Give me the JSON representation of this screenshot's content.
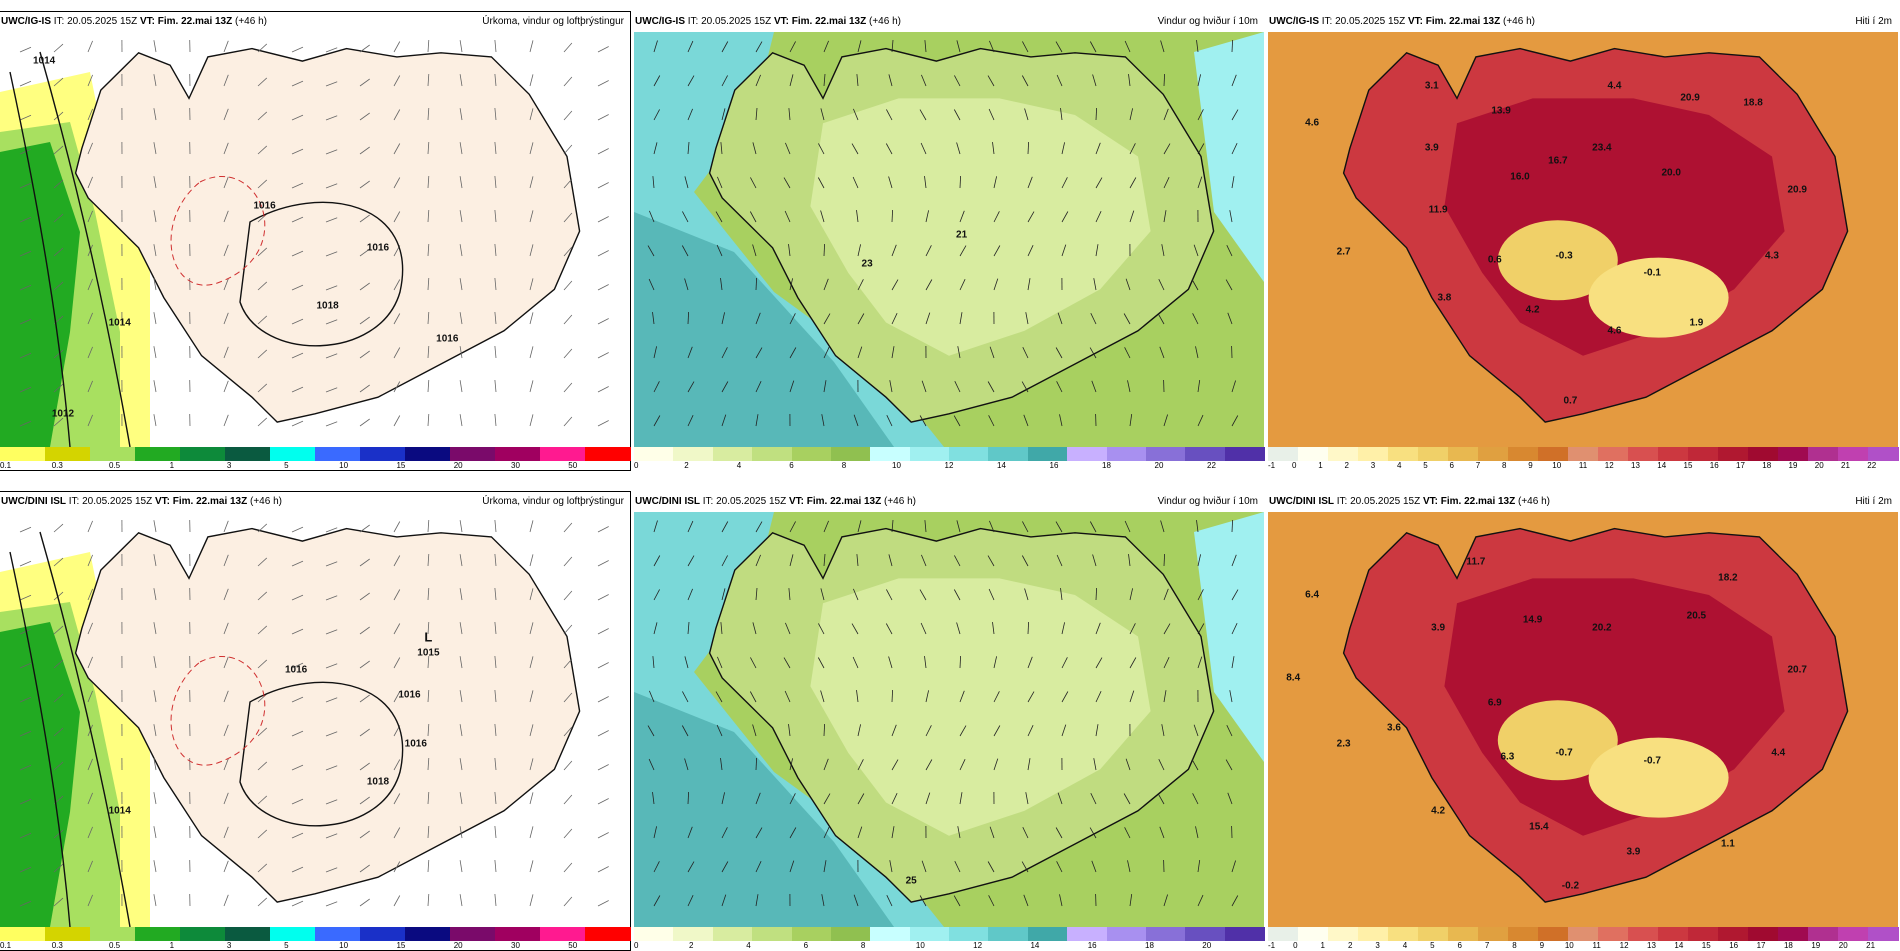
{
  "panels": [
    {
      "id": "igis-precip",
      "model": "UWC/IG-IS",
      "it_label": "IT:",
      "it_value": "20.05.2025 15Z",
      "vt_label": "VT:",
      "vt_value": "Fim. 22.mai 13Z",
      "lead": "(+46 h)",
      "title": "Úrkoma, vindur og loftþrýstingur",
      "kind": "precip",
      "legend": {
        "colors": [
          "#ffff60",
          "#d4d400",
          "#a8e060",
          "#22aa22",
          "#0d8a3a",
          "#0a5a40",
          "#00ffee",
          "#3a6aff",
          "#1a30c8",
          "#0a0a80",
          "#7a0a6a",
          "#a00060",
          "#ff1a90",
          "#ff0000"
        ],
        "ticks": [
          "0.1",
          "0.3",
          "0.5",
          "1",
          "3",
          "5",
          "10",
          "15",
          "20",
          "30",
          "50"
        ]
      },
      "values": [
        {
          "text": "1014"
        },
        {
          "text": "1016"
        },
        {
          "text": "1016"
        },
        {
          "text": "1018"
        },
        {
          "text": "1014"
        },
        {
          "text": "1012"
        },
        {
          "text": "1016"
        }
      ]
    },
    {
      "id": "igis-wind",
      "model": "UWC/IG-IS",
      "it_label": "IT:",
      "it_value": "20.05.2025 15Z",
      "vt_label": "VT:",
      "vt_value": "Fim. 22.mai 13Z",
      "lead": "(+46 h)",
      "title": "Vindur og hviður í 10m",
      "kind": "wind",
      "legend": {
        "colors": [
          "#ffffe8",
          "#f0f8c8",
          "#d8eca0",
          "#c0e080",
          "#a8d060",
          "#90c050",
          "#c8ffff",
          "#a0f0f0",
          "#80e0e0",
          "#60c8c8",
          "#40a8a8",
          "#c8b0ff",
          "#a890f0",
          "#8870d8",
          "#6850c0",
          "#5030a8"
        ],
        "ticks": [
          "0",
          "2",
          "4",
          "6",
          "8",
          "10",
          "12",
          "14",
          "16",
          "18",
          "20",
          "22"
        ]
      },
      "values": [
        {
          "text": "23"
        },
        {
          "text": "21"
        }
      ]
    },
    {
      "id": "igis-temp",
      "model": "UWC/IG-IS",
      "it_label": "IT:",
      "it_value": "20.05.2025 15Z",
      "vt_label": "VT:",
      "vt_value": "Fim. 22.mai 13Z",
      "lead": "(+46 h)",
      "title": "Hiti í 2m",
      "kind": "temp",
      "legend": {
        "colors": [
          "#e8f0e8",
          "#fffff0",
          "#fff8c8",
          "#fff0a8",
          "#f8e080",
          "#f0d068",
          "#e8b850",
          "#e0a040",
          "#d88830",
          "#d07028",
          "#e09070",
          "#e07060",
          "#d85050",
          "#cc3840",
          "#c02838",
          "#b01830",
          "#a00a30",
          "#a00a50",
          "#b03090",
          "#c040b0",
          "#b050c8"
        ],
        "ticks": [
          "-1",
          "0",
          "1",
          "2",
          "3",
          "4",
          "5",
          "6",
          "7",
          "8",
          "9",
          "10",
          "11",
          "12",
          "13",
          "14",
          "15",
          "16",
          "17",
          "18",
          "19",
          "20",
          "21",
          "22"
        ]
      },
      "values": [
        {
          "text": "3.1"
        },
        {
          "text": "4.4"
        },
        {
          "text": "20.9"
        },
        {
          "text": "18.8"
        },
        {
          "text": "4.6"
        },
        {
          "text": "13.9"
        },
        {
          "text": "3.9"
        },
        {
          "text": "16.7"
        },
        {
          "text": "23.4"
        },
        {
          "text": "16.0"
        },
        {
          "text": "20.0"
        },
        {
          "text": "20.9"
        },
        {
          "text": "11.9"
        },
        {
          "text": "2.7"
        },
        {
          "text": "0.6"
        },
        {
          "text": "-0.3"
        },
        {
          "text": "-0.1"
        },
        {
          "text": "4.3"
        },
        {
          "text": "3.8"
        },
        {
          "text": "4.2"
        },
        {
          "text": "1.9"
        },
        {
          "text": "4.6"
        },
        {
          "text": "0.7"
        }
      ]
    },
    {
      "id": "dini-precip",
      "model": "UWC/DINI ISL",
      "it_label": "IT:",
      "it_value": "20.05.2025 15Z",
      "vt_label": "VT:",
      "vt_value": "Fim. 22.mai 13Z",
      "lead": "(+46 h)",
      "title": "Úrkoma, vindur og loftþrýstingur",
      "kind": "precip",
      "legend": {
        "colors": [
          "#ffff60",
          "#d4d400",
          "#a8e060",
          "#22aa22",
          "#0d8a3a",
          "#0a5a40",
          "#00ffee",
          "#3a6aff",
          "#1a30c8",
          "#0a0a80",
          "#7a0a6a",
          "#a00060",
          "#ff1a90",
          "#ff0000"
        ],
        "ticks": [
          "0.1",
          "0.3",
          "0.5",
          "1",
          "3",
          "5",
          "10",
          "15",
          "20",
          "30",
          "50"
        ]
      },
      "values": [
        {
          "text": "L"
        },
        {
          "text": "1015"
        },
        {
          "text": "1016"
        },
        {
          "text": "1016"
        },
        {
          "text": "1014"
        },
        {
          "text": "1018"
        },
        {
          "text": "1016"
        }
      ]
    },
    {
      "id": "dini-wind",
      "model": "UWC/DINI ISL",
      "it_label": "IT:",
      "it_value": "20.05.2025 15Z",
      "vt_label": "VT:",
      "vt_value": "Fim. 22.mai 13Z",
      "lead": "(+46 h)",
      "title": "Vindur og hviður í 10m",
      "kind": "wind",
      "legend": {
        "colors": [
          "#ffffe8",
          "#f0f8c8",
          "#d8eca0",
          "#c0e080",
          "#a8d060",
          "#90c050",
          "#c8ffff",
          "#a0f0f0",
          "#80e0e0",
          "#60c8c8",
          "#40a8a8",
          "#c8b0ff",
          "#a890f0",
          "#8870d8",
          "#6850c0",
          "#5030a8"
        ],
        "ticks": [
          "0",
          "2",
          "4",
          "6",
          "8",
          "10",
          "12",
          "14",
          "16",
          "18",
          "20"
        ]
      },
      "values": [
        {
          "text": "25"
        }
      ]
    },
    {
      "id": "dini-temp",
      "model": "UWC/DINI ISL",
      "it_label": "IT:",
      "it_value": "20.05.2025 15Z",
      "vt_label": "VT:",
      "vt_value": "Fim. 22.mai 13Z",
      "lead": "(+46 h)",
      "title": "Hiti í 2m",
      "kind": "temp",
      "legend": {
        "colors": [
          "#e8f0e8",
          "#fffff0",
          "#fff8c8",
          "#fff0a8",
          "#f8e080",
          "#f0d068",
          "#e8b850",
          "#e0a040",
          "#d88830",
          "#d07028",
          "#e09070",
          "#e07060",
          "#d85050",
          "#cc3840",
          "#c02838",
          "#b01830",
          "#a00a30",
          "#a00a50",
          "#b03090",
          "#c040b0",
          "#b050c8"
        ],
        "ticks": [
          "-1",
          "0",
          "1",
          "2",
          "3",
          "4",
          "5",
          "6",
          "7",
          "8",
          "9",
          "10",
          "11",
          "12",
          "13",
          "14",
          "15",
          "16",
          "17",
          "18",
          "19",
          "20",
          "21"
        ]
      },
      "values": [
        {
          "text": "6.4"
        },
        {
          "text": "11.7"
        },
        {
          "text": "18.2"
        },
        {
          "text": "3.9"
        },
        {
          "text": "14.9"
        },
        {
          "text": "20.2"
        },
        {
          "text": "20.5"
        },
        {
          "text": "20.7"
        },
        {
          "text": "8.4"
        },
        {
          "text": "6.9"
        },
        {
          "text": "3.6"
        },
        {
          "text": "2.3"
        },
        {
          "text": "6.3"
        },
        {
          "text": "-0.7"
        },
        {
          "text": "-0.7"
        },
        {
          "text": "4.4"
        },
        {
          "text": "4.2"
        },
        {
          "text": "15.4"
        },
        {
          "text": "1.1"
        },
        {
          "text": "3.9"
        },
        {
          "text": "-0.2"
        }
      ]
    }
  ]
}
